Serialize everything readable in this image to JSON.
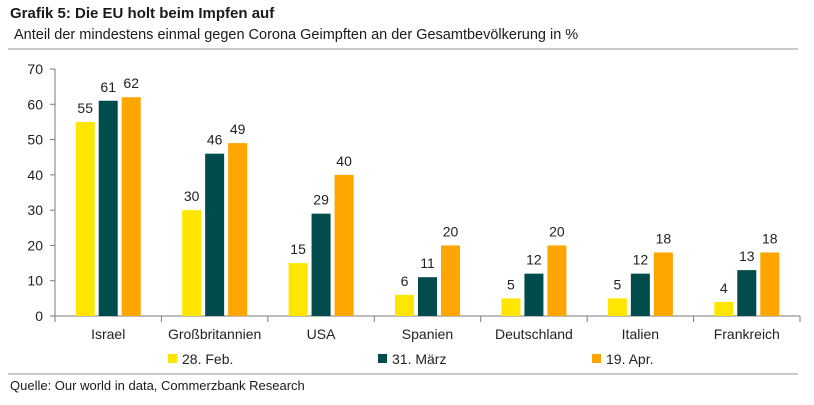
{
  "header": {
    "title": "Grafik 5: Die EU holt beim Impfen auf",
    "subtitle": "Anteil der mindestens einmal gegen Corona Geimpften an der Gesamtbevölkerung in %"
  },
  "footer": {
    "source": "Quelle: Our world in data, Commerzbank Research"
  },
  "chart_data": {
    "type": "bar",
    "title": "Grafik 5: Die EU holt beim Impfen auf",
    "subtitle": "Anteil der mindestens einmal gegen Corona Geimpften an der Gesamtbevölkerung in %",
    "categories": [
      "Israel",
      "Großbritannien",
      "USA",
      "Spanien",
      "Deutschland",
      "Italien",
      "Frankreich"
    ],
    "series": [
      {
        "name": "28. Feb.",
        "color": "#ffe600",
        "values": [
          55,
          30,
          15,
          6,
          5,
          5,
          4
        ]
      },
      {
        "name": "31. März",
        "color": "#004b4b",
        "values": [
          61,
          46,
          29,
          11,
          12,
          12,
          13
        ]
      },
      {
        "name": "19. Apr.",
        "color": "#ffa500",
        "values": [
          62,
          49,
          40,
          20,
          20,
          18,
          18
        ]
      }
    ],
    "ylim": [
      0,
      70
    ],
    "yticks": [
      0,
      10,
      20,
      30,
      40,
      50,
      60,
      70
    ],
    "grid": false,
    "legend_position": "bottom",
    "data_labels": true
  }
}
